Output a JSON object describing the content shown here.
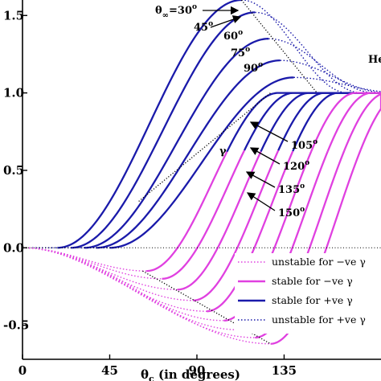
{
  "chart_data": {
    "type": "line",
    "xlabel": "θc (in degrees)",
    "xlabel_main": "θ",
    "xlabel_sub": "c",
    "xlabel_rest": " (in degrees)",
    "xlim": [
      0,
      185
    ],
    "ylim": [
      -0.72,
      1.6
    ],
    "xticks": [
      0,
      45,
      90,
      135
    ],
    "xtick_labels": [
      "0",
      "45",
      "90",
      "135"
    ],
    "yticks": [
      1.5,
      1.0,
      0.5,
      0.0,
      -0.5
    ],
    "ytick_labels": [
      "1.5",
      "1.0",
      "0.5",
      "0.0",
      "-0.5"
    ],
    "grid": false,
    "legend_position": "bottom-right",
    "reference_line_y": 0.0,
    "theta_inf_values": [
      30,
      45,
      60,
      75,
      90,
      105,
      120,
      135,
      150
    ],
    "series": [
      {
        "name": "unstable for −ve γ",
        "style": "dotted",
        "color": "#e040e0"
      },
      {
        "name": "stable for −ve γ",
        "style": "solid",
        "color": "#e040e0"
      },
      {
        "name": "stable for +ve γ",
        "style": "solid",
        "color": "#1a1aaa"
      },
      {
        "name": "unstable for +ve γ",
        "style": "dotted",
        "color": "#1a1aaa"
      }
    ]
  },
  "annotations": {
    "theta_label": "θ",
    "theta_sub": "∞",
    "theta_first": "=30",
    "labels": [
      "45",
      "60",
      "75",
      "90",
      "105",
      "120",
      "135",
      "150"
    ],
    "degree": "o",
    "gamma": "γ",
    "edge_text": "He"
  },
  "colors": {
    "blue": "#1a1aaa",
    "magenta": "#e040e0",
    "black": "#000000"
  }
}
